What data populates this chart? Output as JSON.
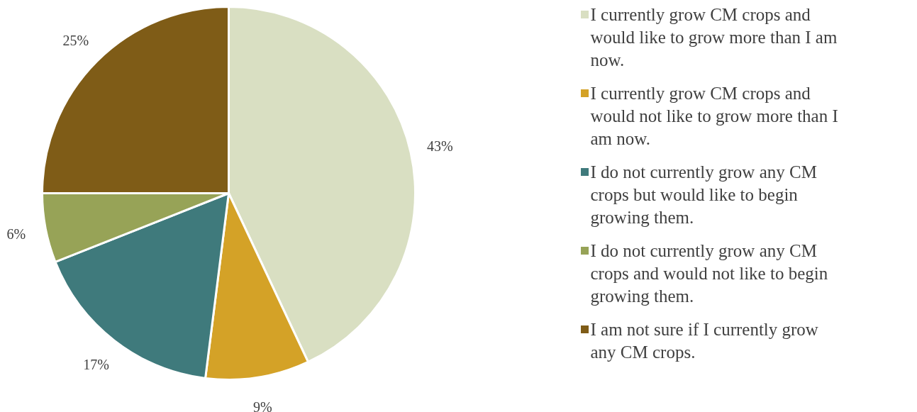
{
  "chart_data": {
    "type": "pie",
    "categories": [
      "I currently grow CM crops and would like to grow more than I am now.",
      "I currently grow CM crops and would not like to grow more than I am now.",
      "I do not currently grow any CM crops but would like to begin growing them.",
      "I do not currently grow any CM crops and would not like to begin growing them.",
      "I am not sure if I currently grow any CM crops."
    ],
    "values": [
      43,
      9,
      17,
      6,
      25
    ],
    "colors": [
      "#d9dfc2",
      "#d4a227",
      "#3f7a7c",
      "#97a357",
      "#7f5c17"
    ],
    "value_labels": [
      "43%",
      "9%",
      "17%",
      "6%",
      "25%"
    ],
    "legend": "right"
  }
}
